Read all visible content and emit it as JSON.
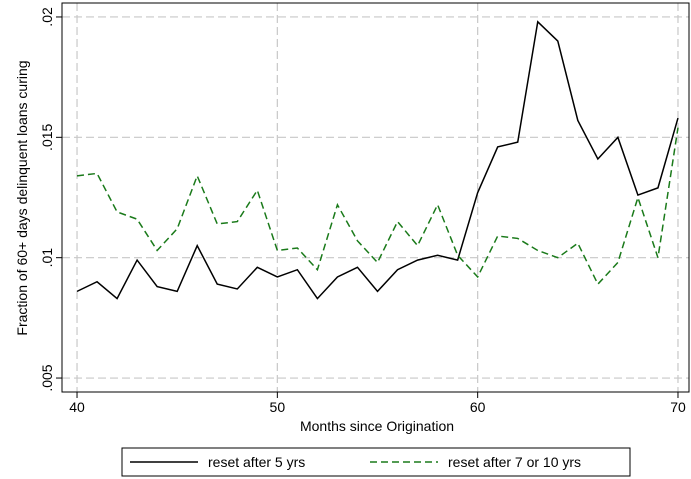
{
  "chart_data": {
    "type": "line",
    "x_label": "Months since Origination",
    "y_label": "Fraction of 60+ days delinquent loans curing",
    "x": [
      40,
      41,
      42,
      43,
      44,
      45,
      46,
      47,
      48,
      49,
      50,
      51,
      52,
      53,
      54,
      55,
      56,
      57,
      58,
      59,
      60,
      61,
      62,
      63,
      64,
      65,
      66,
      67,
      68,
      69,
      70
    ],
    "series": [
      {
        "name": "reset after 5 yrs",
        "color": "#000000",
        "dash": "solid",
        "values": [
          0.0086,
          0.009,
          0.0083,
          0.0099,
          0.0088,
          0.0086,
          0.0105,
          0.0089,
          0.0087,
          0.0096,
          0.0092,
          0.0095,
          0.0083,
          0.0092,
          0.0096,
          0.0086,
          0.0095,
          0.0099,
          0.0101,
          0.0099,
          0.0127,
          0.0146,
          0.0148,
          0.0198,
          0.019,
          0.0157,
          0.0141,
          0.015,
          0.0126,
          0.0129,
          0.0158
        ]
      },
      {
        "name": "reset after 7 or 10 yrs",
        "color": "#1a7a1a",
        "dash": "dashed",
        "values": [
          0.0134,
          0.0135,
          0.0119,
          0.0116,
          0.0103,
          0.0112,
          0.0134,
          0.0114,
          0.0115,
          0.0128,
          0.0103,
          0.0104,
          0.0095,
          0.0122,
          0.0107,
          0.0098,
          0.0115,
          0.0105,
          0.0122,
          0.0101,
          0.0092,
          0.0109,
          0.0108,
          0.0103,
          0.01,
          0.0106,
          0.0089,
          0.0098,
          0.0125,
          0.01,
          0.0154
        ]
      }
    ],
    "xlim": [
      39.25,
      70.55
    ],
    "ylim": [
      0.00442,
      0.02058
    ],
    "xticks": [
      40,
      50,
      60,
      70
    ],
    "yticks": [
      {
        "value": 0.005,
        "label": ".005"
      },
      {
        "value": 0.01,
        "label": ".01"
      },
      {
        "value": 0.015,
        "label": ".015"
      },
      {
        "value": 0.02,
        "label": ".02"
      }
    ],
    "grid": true,
    "legend": "bottom"
  }
}
